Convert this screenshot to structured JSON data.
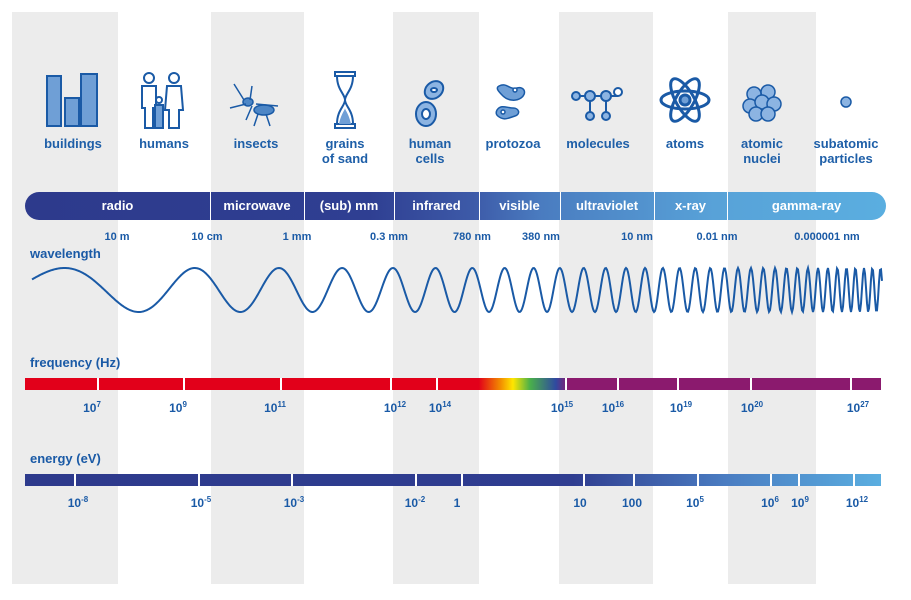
{
  "objects": [
    {
      "label": "buildings",
      "icon": "buildings-icon"
    },
    {
      "label": "humans",
      "icon": "humans-icon"
    },
    {
      "label": "insects",
      "icon": "insect-icon"
    },
    {
      "label": "grains\nof sand",
      "icon": "hourglass-icon"
    },
    {
      "label": "human\ncells",
      "icon": "cells-icon"
    },
    {
      "label": "protozoa",
      "icon": "protozoa-icon"
    },
    {
      "label": "molecules",
      "icon": "molecule-icon"
    },
    {
      "label": "atoms",
      "icon": "atom-icon"
    },
    {
      "label": "atomic\nnuclei",
      "icon": "nucleus-icon"
    },
    {
      "label": "subatomic\nparticles",
      "icon": "particle-icon"
    }
  ],
  "bands": [
    "radio",
    "microwave",
    "(sub) mm",
    "infrared",
    "visible",
    "ultraviolet",
    "x-ray",
    "gamma-ray"
  ],
  "wavelength": {
    "title": "wavelength",
    "labels": [
      "10 m",
      "10 cm",
      "1 mm",
      "0.3 mm",
      "780 nm",
      "380 nm",
      "10 nm",
      "0.01 nm",
      "0.000001 nm"
    ]
  },
  "frequency": {
    "title": "frequency (Hz)",
    "labels": [
      {
        "base": "10",
        "exp": "7"
      },
      {
        "base": "10",
        "exp": "9"
      },
      {
        "base": "10",
        "exp": "11"
      },
      {
        "base": "10",
        "exp": "12"
      },
      {
        "base": "10",
        "exp": "14"
      },
      {
        "base": "10",
        "exp": "15"
      },
      {
        "base": "10",
        "exp": "16"
      },
      {
        "base": "10",
        "exp": "19"
      },
      {
        "base": "10",
        "exp": "20"
      },
      {
        "base": "10",
        "exp": "27"
      }
    ]
  },
  "energy": {
    "title": "energy (eV)",
    "labels": [
      {
        "base": "10",
        "exp": "-8"
      },
      {
        "base": "10",
        "exp": "-5"
      },
      {
        "base": "10",
        "exp": "-3"
      },
      {
        "base": "10",
        "exp": "-2"
      },
      {
        "base": "1",
        "exp": ""
      },
      {
        "base": "10",
        "exp": ""
      },
      {
        "base": "100",
        "exp": ""
      },
      {
        "base": "10",
        "exp": "5"
      },
      {
        "base": "10",
        "exp": "6"
      },
      {
        "base": "10",
        "exp": "9"
      },
      {
        "base": "10",
        "exp": "12"
      }
    ]
  },
  "colors": {
    "text": "#1e5fa8",
    "radio_band": "#2d3a8c",
    "gamma_band": "#5aaee0",
    "frequency_low": "#e2001a",
    "frequency_high": "#8b1a6e",
    "column_shade": "#ececec"
  }
}
